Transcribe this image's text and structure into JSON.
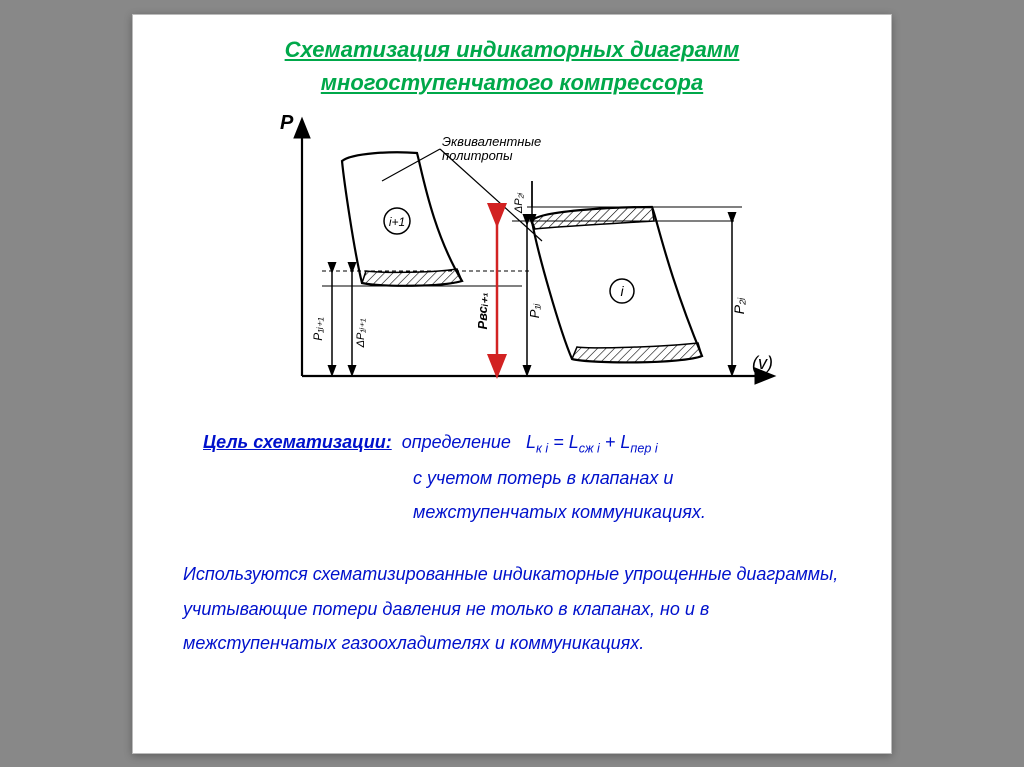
{
  "title_line1": "Схематизация индикаторных диаграмм",
  "title_line2": "многоступенчатого компрессора",
  "diagram": {
    "axis_p": "P",
    "axis_v": "(v)",
    "callout": "Эквивалентные\nполитропы",
    "label_i": "i",
    "label_i1": "i+1",
    "dim_p1i1": "P₁ᵢ₊₁",
    "dim_dp1i1": "ΔP₁ᵢ₊₁",
    "dim_p2i1": "Pвсᵢ₊₁",
    "dim_p1i": "P₁ᵢ",
    "dim_dp2i": "ΔP₂ᵢ",
    "dim_p2i": "P₂ᵢ",
    "colors": {
      "stroke": "#000000",
      "red": "#d22222",
      "bg": "#ffffff",
      "hatch": "#000000"
    },
    "line_w": 2.2
  },
  "goal": {
    "label": "Цель схематизации:",
    "text1": "определение",
    "formula_html": "L<sub>к i</sub> = L<sub>сж i</sub> + L<sub>пер i</sub>",
    "text2": "с учетом потерь в клапанах и",
    "text3": "межступенчатых коммуникациях."
  },
  "desc": "Используются схематизированные индикаторные упрощенные диаграммы, учитывающие потери давления не только в клапанах, но и в межступенчатых газоохладителях и коммуникациях."
}
